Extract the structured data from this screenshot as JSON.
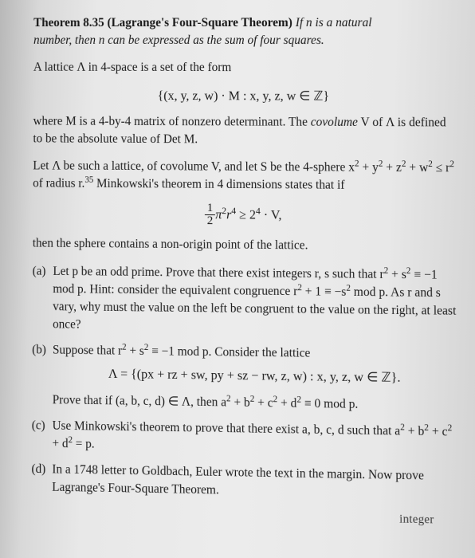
{
  "theorem": {
    "label": "Theorem 8.35",
    "title": "(Lagrange's Four-Square Theorem)",
    "statement_1": "If n is a natural",
    "statement_2": "number, then n can be expressed as the sum of four squares."
  },
  "lattice_intro": "A lattice Λ in 4-space is a set of the form",
  "lattice_set": "{(x, y, z, w) · M : x, y, z, w ∈ ℤ}",
  "lattice_def_1": "where M is a 4-by-4 matrix of nonzero determinant. The ",
  "lattice_def_covol": "covolume",
  "lattice_def_2": " V of Λ is defined to be the absolute value of Det M.",
  "mink_1": "Let Λ be such a lattice, of covolume V, and let S be the 4-sphere x",
  "mink_2": " + y",
  "mink_3": " + z",
  "mink_4": " + w",
  "mink_5": " ≤ r",
  "mink_6": " of radius r.",
  "mink_footref": "35",
  "mink_7": " Minkowski's theorem in 4 dimensions states that if",
  "ineq_left_pi": "π",
  "ineq_left_r": "r",
  "ineq_ge": " ≥ 2",
  "ineq_rhs": " · V,",
  "mink_then": "then the sphere contains a non-origin point of the lattice.",
  "parts": {
    "a": {
      "label": "(a)",
      "t1": "Let p be an odd prime. Prove that there exist integers r, s such that r",
      "t2": " + s",
      "t3": " ≡ −1 mod p. Hint: consider the equivalent congruence r",
      "t4": " + 1 ≡ −s",
      "t5": " mod p. As r and s vary, why must the value on the left be congruent to the value on the right, at least once?"
    },
    "b": {
      "label": "(b)",
      "t1": "Suppose that r",
      "t2": " + s",
      "t3": " ≡ −1 mod p. Consider the lattice",
      "lattice": "Λ = {(px + rz + sw, py + sz − rw, z, w) : x, y, z, w ∈ ℤ}.",
      "t4": "Prove that if (a, b, c, d) ∈ Λ, then a",
      "t5": " + b",
      "t6": " + c",
      "t7": " + d",
      "t8": " ≡ 0 mod p."
    },
    "c": {
      "label": "(c)",
      "t1": "Use Minkowski's theorem to prove that there exist a, b, c, d such that a",
      "t2": " + b",
      "t3": " + c",
      "t4": " + d",
      "t5": " = p."
    },
    "d": {
      "label": "(d)",
      "text": "In a 1748 letter to Goldbach, Euler wrote the text in the margin. Now prove Lagrange's Four-Square Theorem."
    }
  },
  "footer_fragment": "integer",
  "exp2": "2",
  "exp4": "4",
  "num1": "1",
  "num2": "2"
}
